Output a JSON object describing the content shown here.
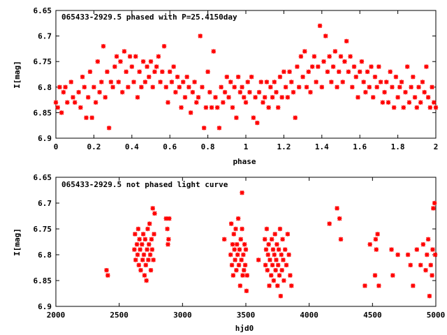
{
  "chart_data": [
    {
      "type": "scatter",
      "title": "065433-2929.5 phased with P=25.4150day",
      "xlabel": "phase",
      "ylabel": "I[mag]",
      "xlim": [
        0,
        2
      ],
      "ylim": [
        6.65,
        6.9
      ],
      "y_inverted": true,
      "grid": false,
      "xticks": [
        "0",
        "0.2",
        "0.4",
        "0.6",
        "0.8",
        "1",
        "1.2",
        "1.4",
        "1.6",
        "1.8",
        "2"
      ],
      "yticks": [
        "6.65",
        "6.7",
        "6.75",
        "6.8",
        "6.85",
        "6.9"
      ],
      "xtick_values": [
        0,
        0.2,
        0.4,
        0.6,
        0.8,
        1,
        1.2,
        1.4,
        1.6,
        1.8,
        2
      ],
      "ytick_values": [
        6.65,
        6.7,
        6.75,
        6.8,
        6.85,
        6.9
      ],
      "marker_color": "#ff0000",
      "points": [
        [
          0.0,
          6.83
        ],
        [
          0.01,
          6.84
        ],
        [
          0.02,
          6.8
        ],
        [
          0.03,
          6.85
        ],
        [
          0.04,
          6.81
        ],
        [
          0.05,
          6.8
        ],
        [
          0.06,
          6.83
        ],
        [
          0.08,
          6.79
        ],
        [
          0.09,
          6.82
        ],
        [
          0.1,
          6.83
        ],
        [
          0.12,
          6.81
        ],
        [
          0.13,
          6.84
        ],
        [
          0.14,
          6.78
        ],
        [
          0.15,
          6.8
        ],
        [
          0.16,
          6.86
        ],
        [
          0.17,
          6.82
        ],
        [
          0.18,
          6.77
        ],
        [
          0.19,
          6.86
        ],
        [
          0.2,
          6.8
        ],
        [
          0.21,
          6.83
        ],
        [
          0.22,
          6.75
        ],
        [
          0.23,
          6.81
        ],
        [
          0.24,
          6.79
        ],
        [
          0.25,
          6.72
        ],
        [
          0.26,
          6.82
        ],
        [
          0.27,
          6.77
        ],
        [
          0.28,
          6.88
        ],
        [
          0.29,
          6.79
        ],
        [
          0.3,
          6.8
        ],
        [
          0.31,
          6.76
        ],
        [
          0.32,
          6.74
        ],
        [
          0.33,
          6.79
        ],
        [
          0.34,
          6.75
        ],
        [
          0.35,
          6.81
        ],
        [
          0.36,
          6.73
        ],
        [
          0.37,
          6.77
        ],
        [
          0.38,
          6.8
        ],
        [
          0.39,
          6.74
        ],
        [
          0.4,
          6.76
        ],
        [
          0.41,
          6.79
        ],
        [
          0.42,
          6.74
        ],
        [
          0.43,
          6.82
        ],
        [
          0.44,
          6.77
        ],
        [
          0.45,
          6.8
        ],
        [
          0.46,
          6.75
        ],
        [
          0.47,
          6.79
        ],
        [
          0.48,
          6.76
        ],
        [
          0.49,
          6.78
        ],
        [
          0.5,
          6.75
        ],
        [
          0.51,
          6.8
        ],
        [
          0.52,
          6.77
        ],
        [
          0.53,
          6.76
        ],
        [
          0.54,
          6.74
        ],
        [
          0.55,
          6.79
        ],
        [
          0.56,
          6.77
        ],
        [
          0.57,
          6.72
        ],
        [
          0.58,
          6.8
        ],
        [
          0.59,
          6.83
        ],
        [
          0.6,
          6.77
        ],
        [
          0.61,
          6.79
        ],
        [
          0.62,
          6.76
        ],
        [
          0.63,
          6.81
        ],
        [
          0.64,
          6.78
        ],
        [
          0.65,
          6.8
        ],
        [
          0.66,
          6.84
        ],
        [
          0.67,
          6.79
        ],
        [
          0.68,
          6.82
        ],
        [
          0.69,
          6.78
        ],
        [
          0.7,
          6.8
        ],
        [
          0.71,
          6.85
        ],
        [
          0.72,
          6.81
        ],
        [
          0.73,
          6.79
        ],
        [
          0.74,
          6.83
        ],
        [
          0.75,
          6.82
        ],
        [
          0.76,
          6.7
        ],
        [
          0.77,
          6.8
        ],
        [
          0.78,
          6.88
        ],
        [
          0.79,
          6.84
        ],
        [
          0.8,
          6.77
        ],
        [
          0.81,
          6.81
        ],
        [
          0.82,
          6.84
        ],
        [
          0.83,
          6.73
        ],
        [
          0.84,
          6.82
        ],
        [
          0.85,
          6.84
        ],
        [
          0.86,
          6.88
        ],
        [
          0.87,
          6.8
        ],
        [
          0.88,
          6.83
        ],
        [
          0.89,
          6.81
        ],
        [
          0.9,
          6.78
        ],
        [
          0.91,
          6.82
        ],
        [
          0.92,
          6.79
        ],
        [
          0.93,
          6.84
        ],
        [
          0.94,
          6.8
        ],
        [
          0.95,
          6.86
        ],
        [
          0.96,
          6.78
        ],
        [
          0.97,
          6.81
        ],
        [
          0.98,
          6.8
        ],
        [
          0.99,
          6.82
        ],
        [
          1.0,
          6.83
        ],
        [
          1.01,
          6.79
        ],
        [
          1.02,
          6.81
        ],
        [
          1.03,
          6.78
        ],
        [
          1.04,
          6.86
        ],
        [
          1.05,
          6.82
        ],
        [
          1.06,
          6.87
        ],
        [
          1.07,
          6.81
        ],
        [
          1.08,
          6.79
        ],
        [
          1.09,
          6.83
        ],
        [
          1.1,
          6.82
        ],
        [
          1.11,
          6.79
        ],
        [
          1.12,
          6.84
        ],
        [
          1.13,
          6.8
        ],
        [
          1.14,
          6.82
        ],
        [
          1.15,
          6.79
        ],
        [
          1.16,
          6.81
        ],
        [
          1.17,
          6.84
        ],
        [
          1.18,
          6.78
        ],
        [
          1.19,
          6.82
        ],
        [
          1.2,
          6.77
        ],
        [
          1.21,
          6.8
        ],
        [
          1.22,
          6.82
        ],
        [
          1.23,
          6.77
        ],
        [
          1.24,
          6.79
        ],
        [
          1.25,
          6.81
        ],
        [
          1.26,
          6.86
        ],
        [
          1.27,
          6.76
        ],
        [
          1.28,
          6.8
        ],
        [
          1.29,
          6.74
        ],
        [
          1.3,
          6.78
        ],
        [
          1.31,
          6.73
        ],
        [
          1.32,
          6.8
        ],
        [
          1.33,
          6.77
        ],
        [
          1.34,
          6.81
        ],
        [
          1.35,
          6.76
        ],
        [
          1.36,
          6.74
        ],
        [
          1.37,
          6.79
        ],
        [
          1.38,
          6.76
        ],
        [
          1.39,
          6.68
        ],
        [
          1.4,
          6.8
        ],
        [
          1.41,
          6.75
        ],
        [
          1.42,
          6.7
        ],
        [
          1.43,
          6.77
        ],
        [
          1.44,
          6.74
        ],
        [
          1.45,
          6.79
        ],
        [
          1.46,
          6.76
        ],
        [
          1.47,
          6.73
        ],
        [
          1.48,
          6.8
        ],
        [
          1.49,
          6.77
        ],
        [
          1.5,
          6.74
        ],
        [
          1.51,
          6.79
        ],
        [
          1.52,
          6.75
        ],
        [
          1.53,
          6.71
        ],
        [
          1.54,
          6.77
        ],
        [
          1.55,
          6.74
        ],
        [
          1.56,
          6.8
        ],
        [
          1.57,
          6.76
        ],
        [
          1.58,
          6.78
        ],
        [
          1.59,
          6.82
        ],
        [
          1.6,
          6.77
        ],
        [
          1.61,
          6.75
        ],
        [
          1.62,
          6.79
        ],
        [
          1.63,
          6.81
        ],
        [
          1.64,
          6.77
        ],
        [
          1.65,
          6.8
        ],
        [
          1.66,
          6.76
        ],
        [
          1.67,
          6.82
        ],
        [
          1.68,
          6.78
        ],
        [
          1.69,
          6.8
        ],
        [
          1.7,
          6.76
        ],
        [
          1.71,
          6.79
        ],
        [
          1.72,
          6.83
        ],
        [
          1.73,
          6.81
        ],
        [
          1.74,
          6.79
        ],
        [
          1.75,
          6.83
        ],
        [
          1.76,
          6.77
        ],
        [
          1.77,
          6.8
        ],
        [
          1.78,
          6.84
        ],
        [
          1.79,
          6.78
        ],
        [
          1.8,
          6.82
        ],
        [
          1.81,
          6.8
        ],
        [
          1.82,
          6.79
        ],
        [
          1.83,
          6.84
        ],
        [
          1.84,
          6.81
        ],
        [
          1.85,
          6.76
        ],
        [
          1.86,
          6.83
        ],
        [
          1.87,
          6.8
        ],
        [
          1.88,
          6.78
        ],
        [
          1.89,
          6.82
        ],
        [
          1.9,
          6.84
        ],
        [
          1.91,
          6.8
        ],
        [
          1.92,
          6.83
        ],
        [
          1.93,
          6.79
        ],
        [
          1.94,
          6.81
        ],
        [
          1.95,
          6.76
        ],
        [
          1.96,
          6.82
        ],
        [
          1.97,
          6.84
        ],
        [
          1.98,
          6.8
        ],
        [
          1.99,
          6.83
        ],
        [
          2.0,
          6.84
        ]
      ]
    },
    {
      "type": "scatter",
      "title": "065433-2929.5 not phased light curve",
      "xlabel": "hjd0",
      "ylabel": "I[mag]",
      "xlim": [
        2000,
        5000
      ],
      "ylim": [
        6.65,
        6.9
      ],
      "y_inverted": true,
      "grid": false,
      "xticks": [
        "2000",
        "2500",
        "3000",
        "3500",
        "4000",
        "4500",
        "5000"
      ],
      "yticks": [
        "6.65",
        "6.7",
        "6.75",
        "6.8",
        "6.85",
        "6.9"
      ],
      "xtick_values": [
        2000,
        2500,
        3000,
        3500,
        4000,
        4500,
        5000
      ],
      "ytick_values": [
        6.65,
        6.7,
        6.75,
        6.8,
        6.85,
        6.9
      ],
      "marker_color": "#ff0000",
      "points": [
        [
          2400,
          6.83
        ],
        [
          2410,
          6.84
        ],
        [
          2620,
          6.79
        ],
        [
          2625,
          6.76
        ],
        [
          2630,
          6.81
        ],
        [
          2640,
          6.78
        ],
        [
          2645,
          6.8
        ],
        [
          2650,
          6.75
        ],
        [
          2655,
          6.82
        ],
        [
          2660,
          6.77
        ],
        [
          2665,
          6.79
        ],
        [
          2670,
          6.83
        ],
        [
          2680,
          6.78
        ],
        [
          2685,
          6.81
        ],
        [
          2690,
          6.76
        ],
        [
          2695,
          6.8
        ],
        [
          2700,
          6.84
        ],
        [
          2705,
          6.77
        ],
        [
          2710,
          6.82
        ],
        [
          2715,
          6.85
        ],
        [
          2720,
          6.79
        ],
        [
          2725,
          6.75
        ],
        [
          2730,
          6.81
        ],
        [
          2735,
          6.78
        ],
        [
          2740,
          6.74
        ],
        [
          2745,
          6.8
        ],
        [
          2750,
          6.83
        ],
        [
          2755,
          6.77
        ],
        [
          2760,
          6.79
        ],
        [
          2765,
          6.71
        ],
        [
          2770,
          6.81
        ],
        [
          2775,
          6.76
        ],
        [
          2780,
          6.72
        ],
        [
          2870,
          6.73
        ],
        [
          2880,
          6.75
        ],
        [
          2885,
          6.78
        ],
        [
          2890,
          6.77
        ],
        [
          2895,
          6.73
        ],
        [
          3330,
          6.77
        ],
        [
          3380,
          6.8
        ],
        [
          3385,
          6.74
        ],
        [
          3390,
          6.82
        ],
        [
          3395,
          6.78
        ],
        [
          3400,
          6.84
        ],
        [
          3405,
          6.76
        ],
        [
          3410,
          6.79
        ],
        [
          3415,
          6.81
        ],
        [
          3420,
          6.75
        ],
        [
          3425,
          6.83
        ],
        [
          3430,
          6.78
        ],
        [
          3435,
          6.8
        ],
        [
          3440,
          6.73
        ],
        [
          3445,
          6.82
        ],
        [
          3450,
          6.79
        ],
        [
          3455,
          6.86
        ],
        [
          3460,
          6.77
        ],
        [
          3465,
          6.81
        ],
        [
          3470,
          6.75
        ],
        [
          3475,
          6.84
        ],
        [
          3480,
          6.8
        ],
        [
          3485,
          6.83
        ],
        [
          3490,
          6.78
        ],
        [
          3495,
          6.82
        ],
        [
          3470,
          6.68
        ],
        [
          3500,
          6.79
        ],
        [
          3505,
          6.87
        ],
        [
          3510,
          6.84
        ],
        [
          3600,
          6.81
        ],
        [
          3650,
          6.77
        ],
        [
          3655,
          6.82
        ],
        [
          3660,
          6.79
        ],
        [
          3665,
          6.75
        ],
        [
          3670,
          6.83
        ],
        [
          3675,
          6.8
        ],
        [
          3680,
          6.78
        ],
        [
          3685,
          6.86
        ],
        [
          3690,
          6.81
        ],
        [
          3700,
          6.84
        ],
        [
          3705,
          6.77
        ],
        [
          3710,
          6.82
        ],
        [
          3715,
          6.79
        ],
        [
          3720,
          6.85
        ],
        [
          3725,
          6.8
        ],
        [
          3730,
          6.76
        ],
        [
          3735,
          6.83
        ],
        [
          3740,
          6.81
        ],
        [
          3745,
          6.78
        ],
        [
          3750,
          6.86
        ],
        [
          3755,
          6.82
        ],
        [
          3760,
          6.79
        ],
        [
          3765,
          6.84
        ],
        [
          3770,
          6.75
        ],
        [
          3775,
          6.88
        ],
        [
          3780,
          6.8
        ],
        [
          3785,
          6.83
        ],
        [
          3790,
          6.77
        ],
        [
          3795,
          6.81
        ],
        [
          3800,
          6.85
        ],
        [
          3810,
          6.79
        ],
        [
          3820,
          6.82
        ],
        [
          3830,
          6.76
        ],
        [
          3840,
          6.8
        ],
        [
          3850,
          6.84
        ],
        [
          3860,
          6.86
        ],
        [
          4160,
          6.74
        ],
        [
          4220,
          6.71
        ],
        [
          4240,
          6.73
        ],
        [
          4250,
          6.77
        ],
        [
          4440,
          6.86
        ],
        [
          4480,
          6.78
        ],
        [
          4520,
          6.84
        ],
        [
          4525,
          6.77
        ],
        [
          4530,
          6.79
        ],
        [
          4540,
          6.76
        ],
        [
          4550,
          6.86
        ],
        [
          4650,
          6.79
        ],
        [
          4660,
          6.84
        ],
        [
          4700,
          6.8
        ],
        [
          4780,
          6.8
        ],
        [
          4800,
          6.82
        ],
        [
          4820,
          6.86
        ],
        [
          4850,
          6.79
        ],
        [
          4880,
          6.82
        ],
        [
          4900,
          6.78
        ],
        [
          4920,
          6.83
        ],
        [
          4930,
          6.8
        ],
        [
          4940,
          6.77
        ],
        [
          4950,
          6.88
        ],
        [
          4960,
          6.82
        ],
        [
          4970,
          6.84
        ],
        [
          4975,
          6.79
        ],
        [
          4980,
          6.71
        ],
        [
          4990,
          6.7
        ],
        [
          4995,
          6.8
        ]
      ]
    }
  ]
}
